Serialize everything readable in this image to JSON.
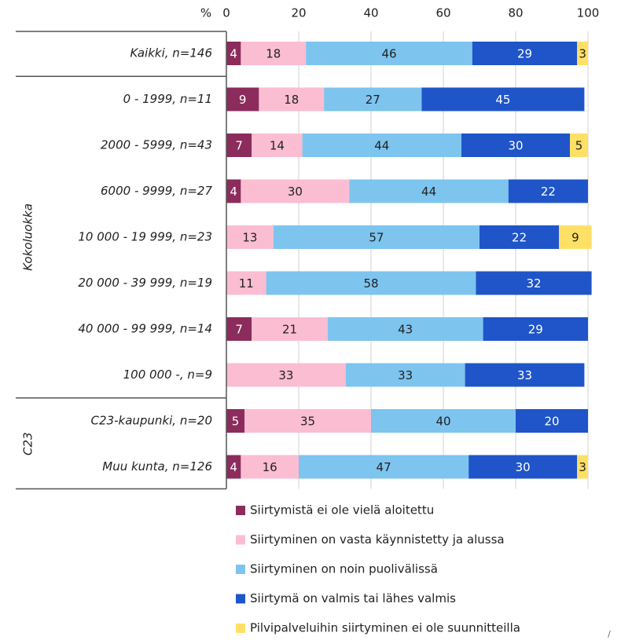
{
  "chart_data": {
    "type": "stacked-barh",
    "x_label": "%",
    "xlim": [
      0,
      100
    ],
    "xticks": [
      0,
      20,
      40,
      60,
      80,
      100
    ],
    "grid": true,
    "categories": [
      "Kaikki, n=146",
      "0 - 1999, n=11",
      "2000 - 5999, n=43",
      "6000 - 9999, n=27",
      "10 000 - 19 999, n=23",
      "20 000 - 39 999, n=19",
      "40 000 - 99 999, n=14",
      "100 000 -, n=9",
      "C23-kaupunki, n=20",
      "Muu kunta, n=126"
    ],
    "category_groups": [
      null,
      "Kokoluokka",
      "Kokoluokka",
      "Kokoluokka",
      "Kokoluokka",
      "Kokoluokka",
      "Kokoluokka",
      "Kokoluokka",
      "C23",
      "C23"
    ],
    "series": [
      {
        "name": "Siirtymistä ei ole vielä aloitettu",
        "color": "#8b2c5c",
        "values": [
          4,
          9,
          7,
          4,
          null,
          null,
          7,
          null,
          5,
          4
        ]
      },
      {
        "name": "Siirtyminen on vasta käynnistetty ja alussa",
        "color": "#fbbdd1",
        "values": [
          18,
          18,
          14,
          30,
          13,
          11,
          21,
          33,
          35,
          16
        ]
      },
      {
        "name": "Siirtyminen on noin puolivälissä",
        "color": "#7dc4ef",
        "values": [
          46,
          27,
          44,
          44,
          57,
          58,
          43,
          33,
          40,
          47
        ]
      },
      {
        "name": "Siirtymä on valmis tai lähes valmis",
        "color": "#1f55c9",
        "values": [
          29,
          45,
          30,
          22,
          22,
          32,
          29,
          33,
          20,
          30
        ]
      },
      {
        "name": "Pilvipalveluihin siirtyminen ei ole suunnitteilla",
        "color": "#ffe066",
        "values": [
          3,
          null,
          5,
          null,
          9,
          null,
          null,
          null,
          null,
          3
        ]
      }
    ],
    "legend": "bottom",
    "footer_mark": "/"
  }
}
